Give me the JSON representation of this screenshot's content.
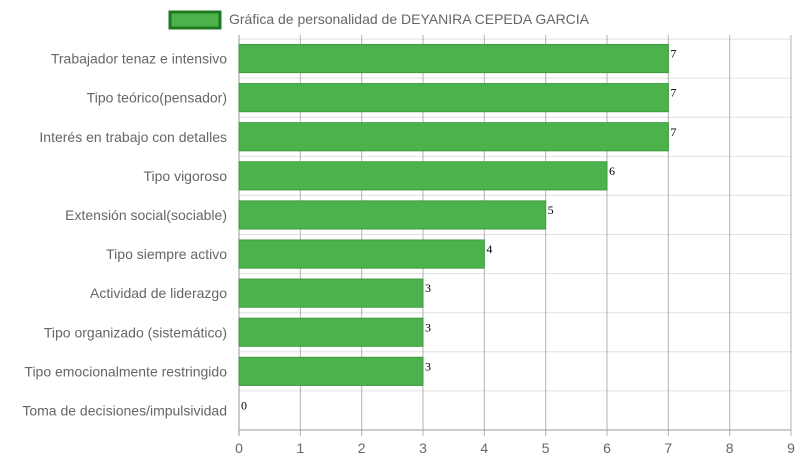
{
  "chart_data": {
    "type": "bar",
    "orientation": "horizontal",
    "legend": {
      "position": "top",
      "label": "Gráfica de personalidad de DEYANIRA CEPEDA GARCIA"
    },
    "categories": [
      "Trabajador tenaz e intensivo",
      "Tipo teórico(pensador)",
      "Interés en trabajo con detalles",
      "Tipo vigoroso",
      "Extensión social(sociable)",
      "Tipo siempre activo",
      "Actividad de liderazgo",
      "Tipo organizado (sistemático)",
      "Tipo emocionalmente restringido",
      "Toma de decisiones/impulsividad"
    ],
    "series": [
      {
        "name": "Gráfica de personalidad de DEYANIRA CEPEDA GARCIA",
        "values": [
          7,
          7,
          7,
          6,
          5,
          4,
          3,
          3,
          3,
          0
        ]
      }
    ],
    "xlim": [
      0,
      9
    ],
    "x_ticks": [
      "0",
      "1",
      "2",
      "3",
      "4",
      "5",
      "6",
      "7",
      "8",
      "9"
    ],
    "grid": true,
    "data_labels": true,
    "colors": {
      "bar_fill": "#4cb34c",
      "bar_stroke": "#3f9a3f",
      "legend_border": "#1e7a1e",
      "grid": "#e0e0e0",
      "axis": "#999999"
    }
  }
}
